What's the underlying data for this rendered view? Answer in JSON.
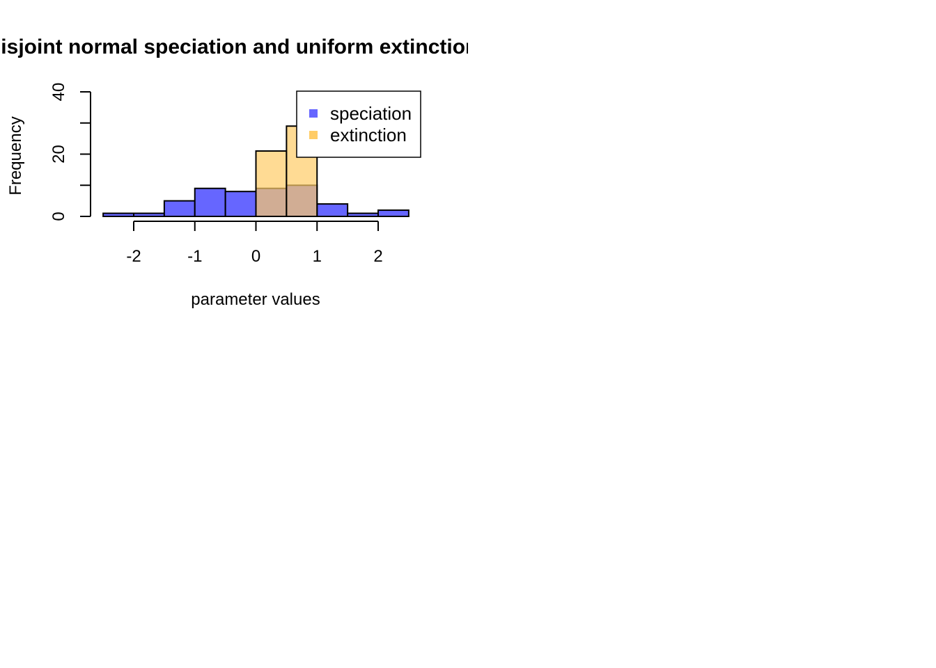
{
  "chart_data": {
    "type": "bar",
    "title": "Disjoint normal speciation and uniform extinction",
    "xlabel": "parameter values",
    "ylabel": "Frequency",
    "xlim": [
      -2.7,
      2.7
    ],
    "ylim": [
      0,
      40
    ],
    "x_ticks": [
      "-2",
      "-1",
      "0",
      "1",
      "2"
    ],
    "y_ticks": [
      "0",
      "20",
      "40"
    ],
    "bin_width": 0.5,
    "legend_position": "top-right",
    "series": [
      {
        "name": "speciation",
        "color": "#6666ff",
        "bins": [
          {
            "start": -2.5,
            "count": 1
          },
          {
            "start": -2.0,
            "count": 1
          },
          {
            "start": -1.5,
            "count": 5
          },
          {
            "start": -1.0,
            "count": 9
          },
          {
            "start": -0.5,
            "count": 8
          },
          {
            "start": 0.0,
            "count": 9
          },
          {
            "start": 0.5,
            "count": 10
          },
          {
            "start": 1.0,
            "count": 4
          },
          {
            "start": 1.5,
            "count": 1
          },
          {
            "start": 2.0,
            "count": 2
          }
        ]
      },
      {
        "name": "extinction",
        "color": "#ffcc66",
        "bins": [
          {
            "start": 0.0,
            "count": 21
          },
          {
            "start": 0.5,
            "count": 29
          }
        ]
      }
    ],
    "overlap_color": "#c08a6a"
  }
}
